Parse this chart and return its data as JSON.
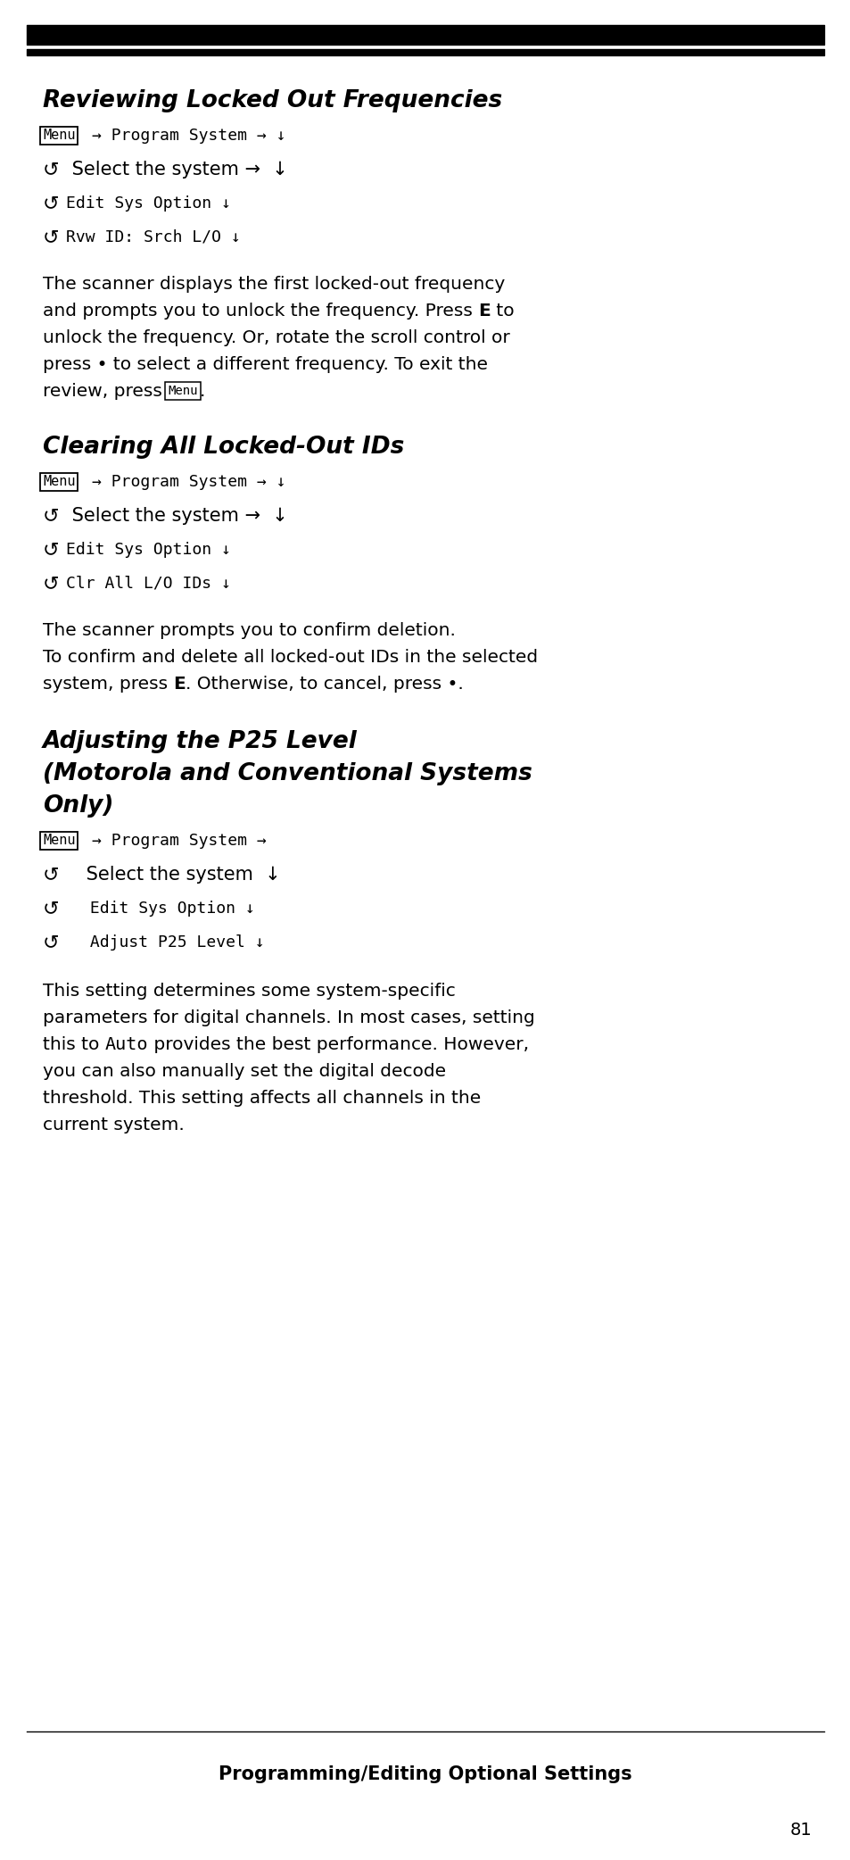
{
  "bg_color": "#ffffff",
  "text_color": "#000000",
  "page_width": 9.54,
  "page_height": 20.84,
  "section1_title": "Reviewing Locked Out Frequencies",
  "section2_title": "Clearing All Locked-Out IDs",
  "section3_title_line1": "Adjusting the P25 Level",
  "section3_title_line2": "(Motorola and Conventional Systems",
  "section3_title_line3": "Only)",
  "footer_title": "Programming/Editing Optional Settings",
  "page_number": "81"
}
